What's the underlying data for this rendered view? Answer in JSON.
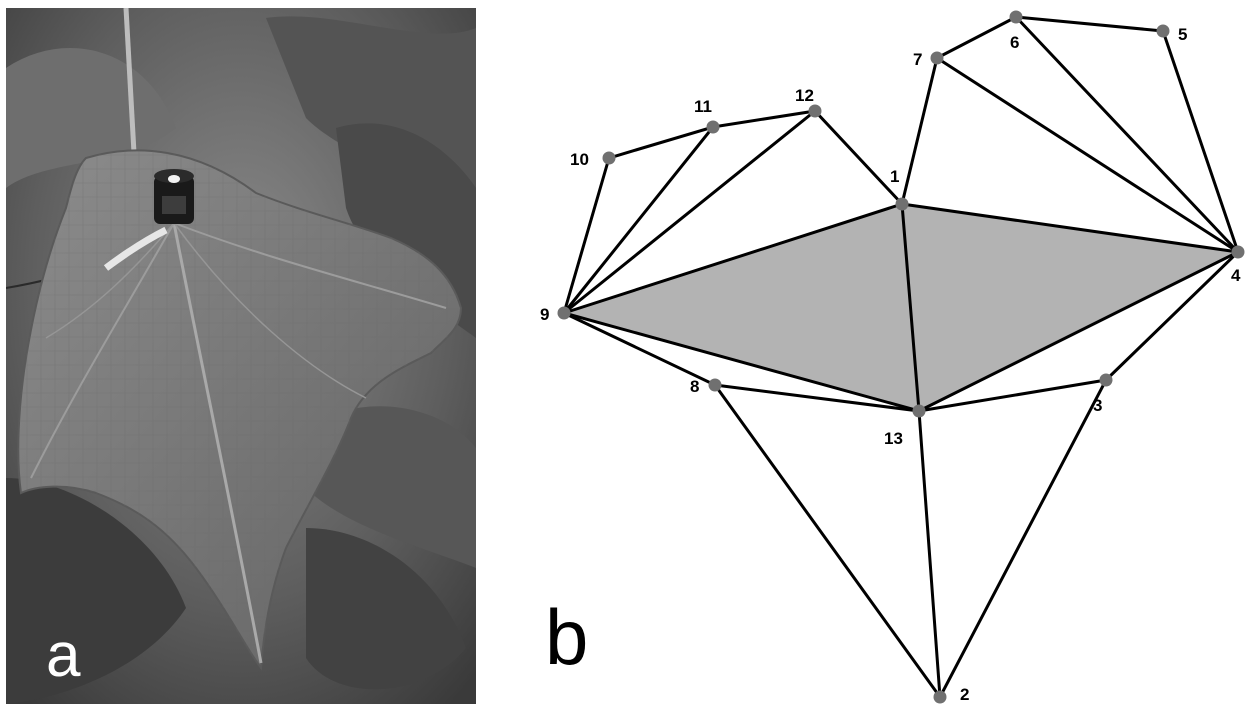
{
  "panels": {
    "a": {
      "label": "a"
    },
    "b": {
      "label": "b"
    }
  },
  "photo": {
    "subject": "leaf with sensor",
    "tone": "grayscale"
  },
  "mesh": {
    "colors": {
      "edge": "#000000",
      "node": "#707070",
      "fill": "#b3b3b3"
    },
    "nodes": [
      {
        "id": "1",
        "label": "1"
      },
      {
        "id": "2",
        "label": "2"
      },
      {
        "id": "3",
        "label": "3"
      },
      {
        "id": "4",
        "label": "4"
      },
      {
        "id": "5",
        "label": "5"
      },
      {
        "id": "6",
        "label": "6"
      },
      {
        "id": "7",
        "label": "7"
      },
      {
        "id": "8",
        "label": "8"
      },
      {
        "id": "9",
        "label": "9"
      },
      {
        "id": "10",
        "label": "10"
      },
      {
        "id": "11",
        "label": "11"
      },
      {
        "id": "12",
        "label": "12"
      },
      {
        "id": "13",
        "label": "13"
      }
    ],
    "edges": [
      [
        "9",
        "10"
      ],
      [
        "10",
        "11"
      ],
      [
        "11",
        "12"
      ],
      [
        "9",
        "11"
      ],
      [
        "9",
        "12"
      ],
      [
        "12",
        "1"
      ],
      [
        "1",
        "7"
      ],
      [
        "7",
        "6"
      ],
      [
        "6",
        "5"
      ],
      [
        "7",
        "4"
      ],
      [
        "6",
        "4"
      ],
      [
        "5",
        "4"
      ],
      [
        "9",
        "1"
      ],
      [
        "1",
        "4"
      ],
      [
        "1",
        "13"
      ],
      [
        "9",
        "13"
      ],
      [
        "13",
        "4"
      ],
      [
        "9",
        "8"
      ],
      [
        "8",
        "13"
      ],
      [
        "13",
        "3"
      ],
      [
        "3",
        "4"
      ],
      [
        "8",
        "2"
      ],
      [
        "13",
        "2"
      ],
      [
        "3",
        "2"
      ]
    ],
    "shaded_regions": [
      [
        "9",
        "1",
        "4",
        "13"
      ]
    ]
  }
}
